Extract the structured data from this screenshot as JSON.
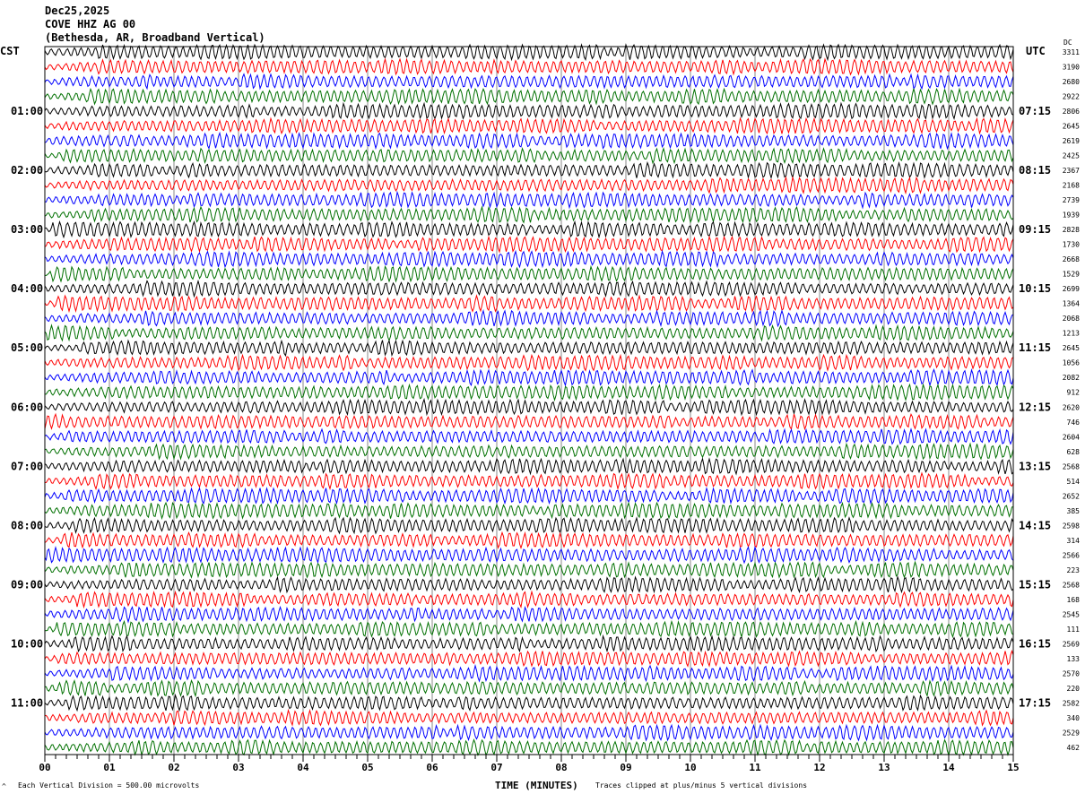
{
  "header": {
    "date": "Dec25,2025",
    "station": "COVE HHZ AG 00",
    "location": "(Bethesda, AR, Broadband Vertical)"
  },
  "left_timezone": "CST",
  "right_timezone": "UTC",
  "right_column_header": "DC",
  "footer": {
    "scale": "Each Vertical Division =  500.00 microvolts",
    "xlabel": "TIME (MINUTES)",
    "clip_note": "Traces clipped at plus/minus 5 vertical divisions"
  },
  "chart_data": {
    "type": "line",
    "subtype": "helicorder",
    "xlabel": "TIME (MINUTES)",
    "xlim": [
      0,
      15
    ],
    "x_ticks": [
      "00",
      "01",
      "02",
      "03",
      "04",
      "05",
      "06",
      "07",
      "08",
      "09",
      "10",
      "11",
      "12",
      "13",
      "14",
      "15"
    ],
    "trace_colors": [
      "#000000",
      "#ff0000",
      "#0000ff",
      "#007000"
    ],
    "rows_per_hour": 4,
    "left_hour_labels": [
      "01:00",
      "02:00",
      "03:00",
      "04:00",
      "05:00",
      "06:00",
      "07:00",
      "08:00",
      "09:00",
      "10:00",
      "11:00"
    ],
    "right_hour_labels": [
      "07:15",
      "08:15",
      "09:15",
      "10:15",
      "11:15",
      "12:15",
      "13:15",
      "14:15",
      "15:15",
      "16:15",
      "17:15"
    ],
    "row_dc_values": [
      "3311",
      "3190",
      "2680",
      "2922",
      "2806",
      "2645",
      "2619",
      "2425",
      "2367",
      "2168",
      "2739",
      "1939",
      "2828",
      "1730",
      "2668",
      "1529",
      "2699",
      "1364",
      "2068",
      "1213",
      "2645",
      "1056",
      "2082",
      "912",
      "2620",
      "746",
      "2604",
      "628",
      "2568",
      "514",
      "2652",
      "385",
      "2598",
      "314",
      "2566",
      "223",
      "2568",
      "168",
      "2545",
      "111",
      "2569",
      "133",
      "2570",
      "220",
      "2582",
      "340",
      "2529",
      "462"
    ],
    "grid": true
  }
}
